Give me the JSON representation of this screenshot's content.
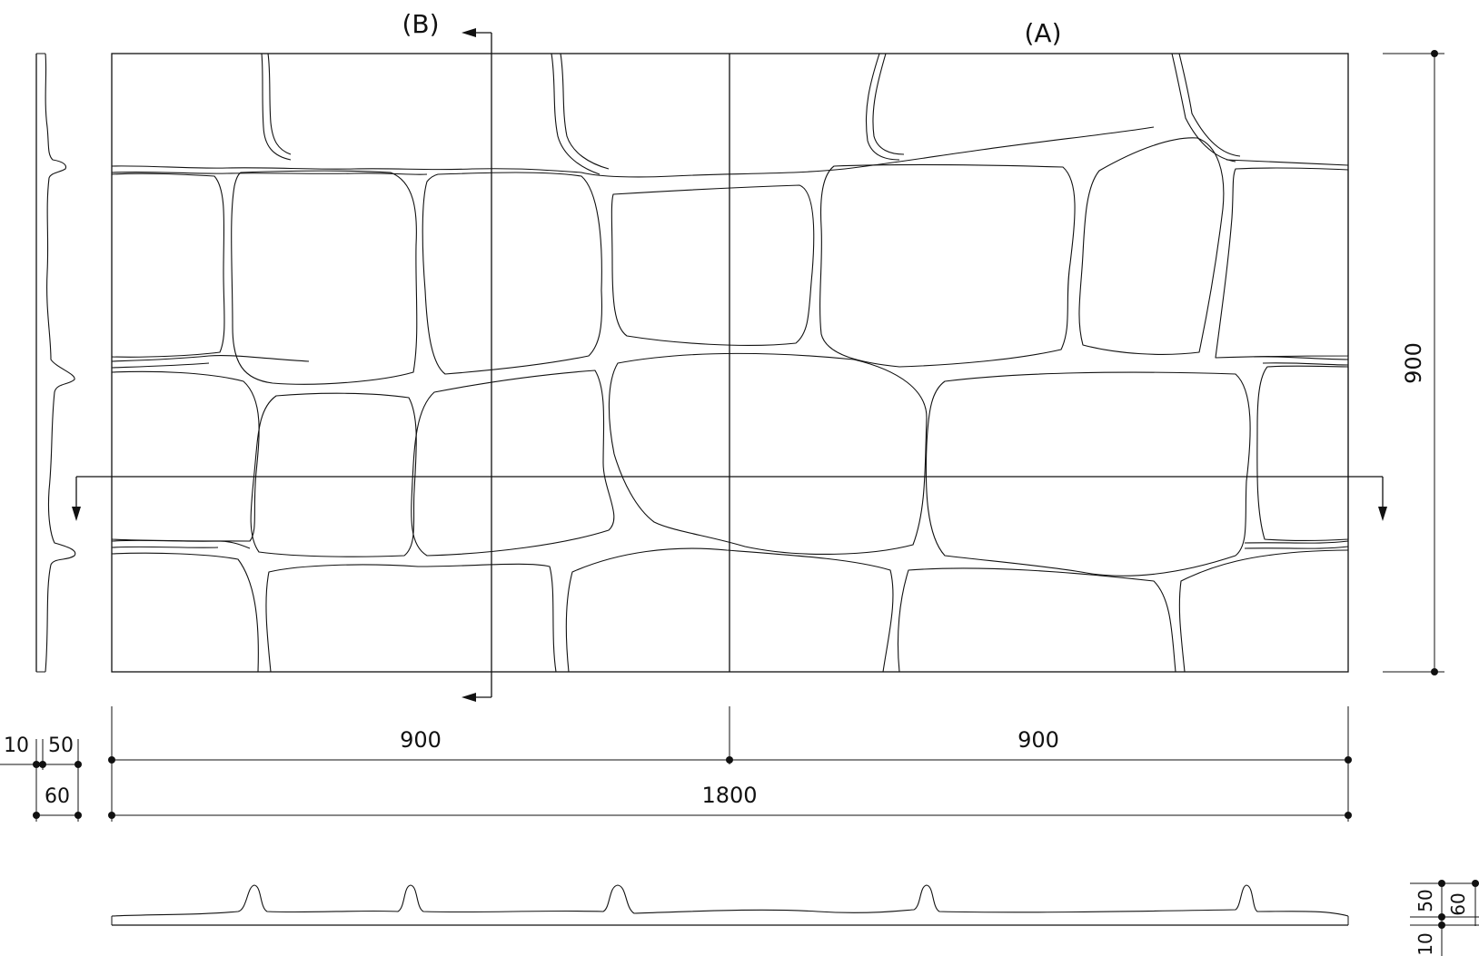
{
  "sections": {
    "a_label": "(A)",
    "b_label": "(B)"
  },
  "dimensions": {
    "width_half_left": "900",
    "width_half_right": "900",
    "width_total": "1800",
    "height_total": "900",
    "side_face": "10",
    "side_relief": "50",
    "side_total": "60",
    "bottom_face": "10",
    "bottom_relief": "50",
    "bottom_total": "60"
  },
  "colors": {
    "line": "#111111",
    "background": "#ffffff"
  }
}
